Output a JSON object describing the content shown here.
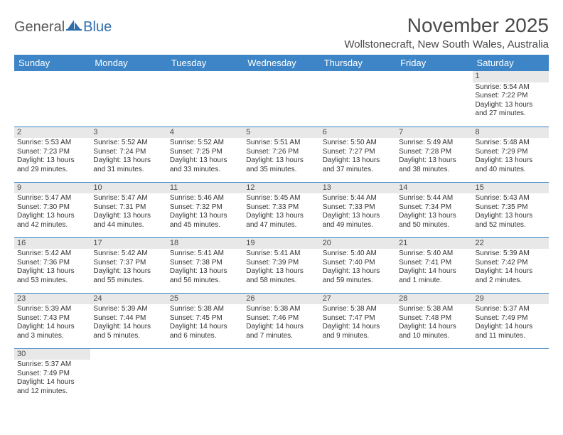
{
  "logo": {
    "part1": "General",
    "part2": "Blue"
  },
  "title": "November 2025",
  "location": "Wollstonecraft, New South Wales, Australia",
  "colors": {
    "header_bg": "#3d85c6",
    "header_text": "#ffffff",
    "daynum_bg": "#e8e8e8",
    "border": "#3d85c6",
    "text": "#333333",
    "title_text": "#4a4a4a",
    "logo_gray": "#5a5a5a",
    "logo_blue": "#2f6ead"
  },
  "daysOfWeek": [
    "Sunday",
    "Monday",
    "Tuesday",
    "Wednesday",
    "Thursday",
    "Friday",
    "Saturday"
  ],
  "weeks": [
    [
      null,
      null,
      null,
      null,
      null,
      null,
      {
        "n": "1",
        "sr": "5:54 AM",
        "ss": "7:22 PM",
        "dl": "13 hours and 27 minutes."
      }
    ],
    [
      {
        "n": "2",
        "sr": "5:53 AM",
        "ss": "7:23 PM",
        "dl": "13 hours and 29 minutes."
      },
      {
        "n": "3",
        "sr": "5:52 AM",
        "ss": "7:24 PM",
        "dl": "13 hours and 31 minutes."
      },
      {
        "n": "4",
        "sr": "5:52 AM",
        "ss": "7:25 PM",
        "dl": "13 hours and 33 minutes."
      },
      {
        "n": "5",
        "sr": "5:51 AM",
        "ss": "7:26 PM",
        "dl": "13 hours and 35 minutes."
      },
      {
        "n": "6",
        "sr": "5:50 AM",
        "ss": "7:27 PM",
        "dl": "13 hours and 37 minutes."
      },
      {
        "n": "7",
        "sr": "5:49 AM",
        "ss": "7:28 PM",
        "dl": "13 hours and 38 minutes."
      },
      {
        "n": "8",
        "sr": "5:48 AM",
        "ss": "7:29 PM",
        "dl": "13 hours and 40 minutes."
      }
    ],
    [
      {
        "n": "9",
        "sr": "5:47 AM",
        "ss": "7:30 PM",
        "dl": "13 hours and 42 minutes."
      },
      {
        "n": "10",
        "sr": "5:47 AM",
        "ss": "7:31 PM",
        "dl": "13 hours and 44 minutes."
      },
      {
        "n": "11",
        "sr": "5:46 AM",
        "ss": "7:32 PM",
        "dl": "13 hours and 45 minutes."
      },
      {
        "n": "12",
        "sr": "5:45 AM",
        "ss": "7:33 PM",
        "dl": "13 hours and 47 minutes."
      },
      {
        "n": "13",
        "sr": "5:44 AM",
        "ss": "7:33 PM",
        "dl": "13 hours and 49 minutes."
      },
      {
        "n": "14",
        "sr": "5:44 AM",
        "ss": "7:34 PM",
        "dl": "13 hours and 50 minutes."
      },
      {
        "n": "15",
        "sr": "5:43 AM",
        "ss": "7:35 PM",
        "dl": "13 hours and 52 minutes."
      }
    ],
    [
      {
        "n": "16",
        "sr": "5:42 AM",
        "ss": "7:36 PM",
        "dl": "13 hours and 53 minutes."
      },
      {
        "n": "17",
        "sr": "5:42 AM",
        "ss": "7:37 PM",
        "dl": "13 hours and 55 minutes."
      },
      {
        "n": "18",
        "sr": "5:41 AM",
        "ss": "7:38 PM",
        "dl": "13 hours and 56 minutes."
      },
      {
        "n": "19",
        "sr": "5:41 AM",
        "ss": "7:39 PM",
        "dl": "13 hours and 58 minutes."
      },
      {
        "n": "20",
        "sr": "5:40 AM",
        "ss": "7:40 PM",
        "dl": "13 hours and 59 minutes."
      },
      {
        "n": "21",
        "sr": "5:40 AM",
        "ss": "7:41 PM",
        "dl": "14 hours and 1 minute."
      },
      {
        "n": "22",
        "sr": "5:39 AM",
        "ss": "7:42 PM",
        "dl": "14 hours and 2 minutes."
      }
    ],
    [
      {
        "n": "23",
        "sr": "5:39 AM",
        "ss": "7:43 PM",
        "dl": "14 hours and 3 minutes."
      },
      {
        "n": "24",
        "sr": "5:39 AM",
        "ss": "7:44 PM",
        "dl": "14 hours and 5 minutes."
      },
      {
        "n": "25",
        "sr": "5:38 AM",
        "ss": "7:45 PM",
        "dl": "14 hours and 6 minutes."
      },
      {
        "n": "26",
        "sr": "5:38 AM",
        "ss": "7:46 PM",
        "dl": "14 hours and 7 minutes."
      },
      {
        "n": "27",
        "sr": "5:38 AM",
        "ss": "7:47 PM",
        "dl": "14 hours and 9 minutes."
      },
      {
        "n": "28",
        "sr": "5:38 AM",
        "ss": "7:48 PM",
        "dl": "14 hours and 10 minutes."
      },
      {
        "n": "29",
        "sr": "5:37 AM",
        "ss": "7:49 PM",
        "dl": "14 hours and 11 minutes."
      }
    ],
    [
      {
        "n": "30",
        "sr": "5:37 AM",
        "ss": "7:49 PM",
        "dl": "14 hours and 12 minutes."
      },
      null,
      null,
      null,
      null,
      null,
      null
    ]
  ],
  "labels": {
    "sunrise": "Sunrise:",
    "sunset": "Sunset:",
    "daylight": "Daylight:"
  }
}
